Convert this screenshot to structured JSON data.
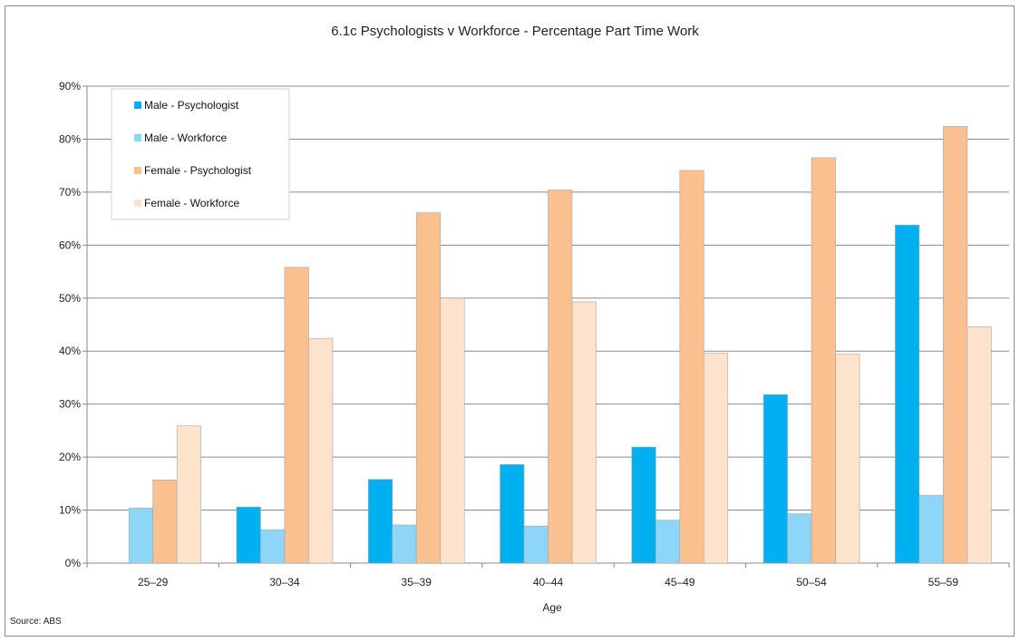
{
  "chart_data": {
    "type": "bar",
    "title": "6.1c Psychologists v Workforce - Percentage Part Time Work",
    "xlabel": "Age",
    "ylabel": "",
    "ylim": [
      0,
      90
    ],
    "yticks": [
      "0%",
      "10%",
      "20%",
      "30%",
      "40%",
      "50%",
      "60%",
      "70%",
      "80%",
      "90%"
    ],
    "categories": [
      "25–29",
      "30–34",
      "35–39",
      "40–44",
      "45–49",
      "50–54",
      "55–59"
    ],
    "series": [
      {
        "name": "Male - Psychologist",
        "color": "#00b0f0",
        "values": [
          0,
          10.6,
          15.8,
          18.6,
          21.9,
          31.8,
          63.8
        ]
      },
      {
        "name": "Male - Workforce",
        "color": "#8dd6f7",
        "values": [
          10.4,
          6.3,
          7.2,
          7.0,
          8.1,
          9.3,
          12.8
        ]
      },
      {
        "name": "Female - Psychologist",
        "color": "#fac090",
        "values": [
          15.7,
          55.8,
          66.1,
          70.4,
          74.1,
          76.5,
          82.4
        ]
      },
      {
        "name": "Female - Workforce",
        "color": "#fde2cc",
        "values": [
          25.9,
          42.4,
          50.0,
          49.3,
          39.6,
          39.4,
          44.6
        ]
      }
    ],
    "grid": true,
    "legend_position": "top-left",
    "source": "Source: ABS"
  }
}
